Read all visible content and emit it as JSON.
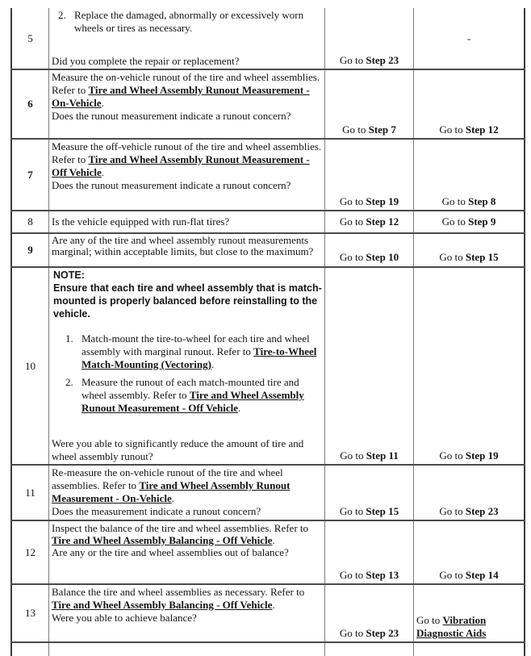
{
  "table": {
    "rows": {
      "r5": {
        "step": "5",
        "item_num": "2.",
        "item_text": "Replace the damaged, abnormally or excessively worn wheels or tires as necessary.",
        "question": "Did you complete the repair or replacement?",
        "yes_prefix": "Go to ",
        "yes_step": "Step 23",
        "no_value": "-"
      },
      "r6": {
        "step": "6",
        "pre": "Measure the on-vehicle runout of the tire and wheel assemblies. Refer to ",
        "link": "Tire and Wheel Assembly Runout Measurement - On-Vehicle",
        "post": ".",
        "question": "Does the runout measurement indicate a runout concern?",
        "yes_prefix": "Go to ",
        "yes_step": "Step 7",
        "no_prefix": "Go to ",
        "no_step": "Step 12"
      },
      "r7": {
        "step": "7",
        "pre": "Measure the off-vehicle runout of the tire and wheel assemblies. Refer to ",
        "link": "Tire and Wheel Assembly Runout Measurement - Off Vehicle",
        "post": ".",
        "question": "Does the runout measurement indicate a runout concern?",
        "yes_prefix": "Go to ",
        "yes_step": "Step 19",
        "no_prefix": "Go to ",
        "no_step": "Step 8"
      },
      "r8": {
        "step": "8",
        "question": "Is the vehicle equipped with run-flat tires?",
        "yes_prefix": "Go to ",
        "yes_step": "Step 12",
        "no_prefix": "Go to ",
        "no_step": "Step 9"
      },
      "r9": {
        "step": "9",
        "question": "Are any of the tire and wheel assembly runout measurements marginal; within acceptable limits, but close to the maximum?",
        "yes_prefix": "Go to ",
        "yes_step": "Step 10",
        "no_prefix": "Go to ",
        "no_step": "Step 15"
      },
      "r10": {
        "step": "10",
        "note_label": "NOTE:",
        "note_text": "Ensure that each tire and wheel assembly that is match-mounted is properly balanced before reinstalling to the vehicle.",
        "item1_num": "1.",
        "item1_pre": "Match-mount the tire-to-wheel for each tire and wheel assembly with marginal runout. Refer to ",
        "item1_link": "Tire-to-Wheel Match-Mounting (Vectoring)",
        "item1_post": ".",
        "item2_num": "2.",
        "item2_pre": "Measure the runout of each match-mounted tire and wheel assembly. Refer to ",
        "item2_link": "Tire and Wheel Assembly Runout Measurement - Off Vehicle",
        "item2_post": ".",
        "question": "Were you able to significantly reduce the amount of tire and wheel assembly runout?",
        "yes_prefix": "Go to ",
        "yes_step": "Step 11",
        "no_prefix": "Go to ",
        "no_step": "Step 19"
      },
      "r11": {
        "step": "11",
        "pre": "Re-measure the on-vehicle runout of the tire and wheel assemblies. Refer to ",
        "link": "Tire and Wheel Assembly Runout Measurement - On-Vehicle",
        "post": ".",
        "question": "Does the measurement indicate a runout concern?",
        "yes_prefix": "Go to ",
        "yes_step": "Step 15",
        "no_prefix": "Go to ",
        "no_step": "Step 23"
      },
      "r12": {
        "step": "12",
        "pre": "Inspect the balance of the tire and wheel assemblies. Refer to ",
        "link": "Tire and Wheel Assembly Balancing - Off Vehicle",
        "post": ".",
        "question": "Are any or the tire and wheel assemblies out of balance?",
        "yes_prefix": "Go to ",
        "yes_step": "Step 13",
        "no_prefix": "Go to ",
        "no_step": "Step 14"
      },
      "r13": {
        "step": "13",
        "pre": "Balance the tire and wheel assemblies as necessary. Refer to ",
        "link": "Tire and Wheel Assembly Balancing - Off Vehicle",
        "post": ".",
        "question": "Were you able to achieve balance?",
        "yes_prefix": "Go to ",
        "yes_step": "Step 23",
        "no_prefix": "Go to ",
        "no_link": "Vibration Diagnostic Aids"
      }
    }
  }
}
